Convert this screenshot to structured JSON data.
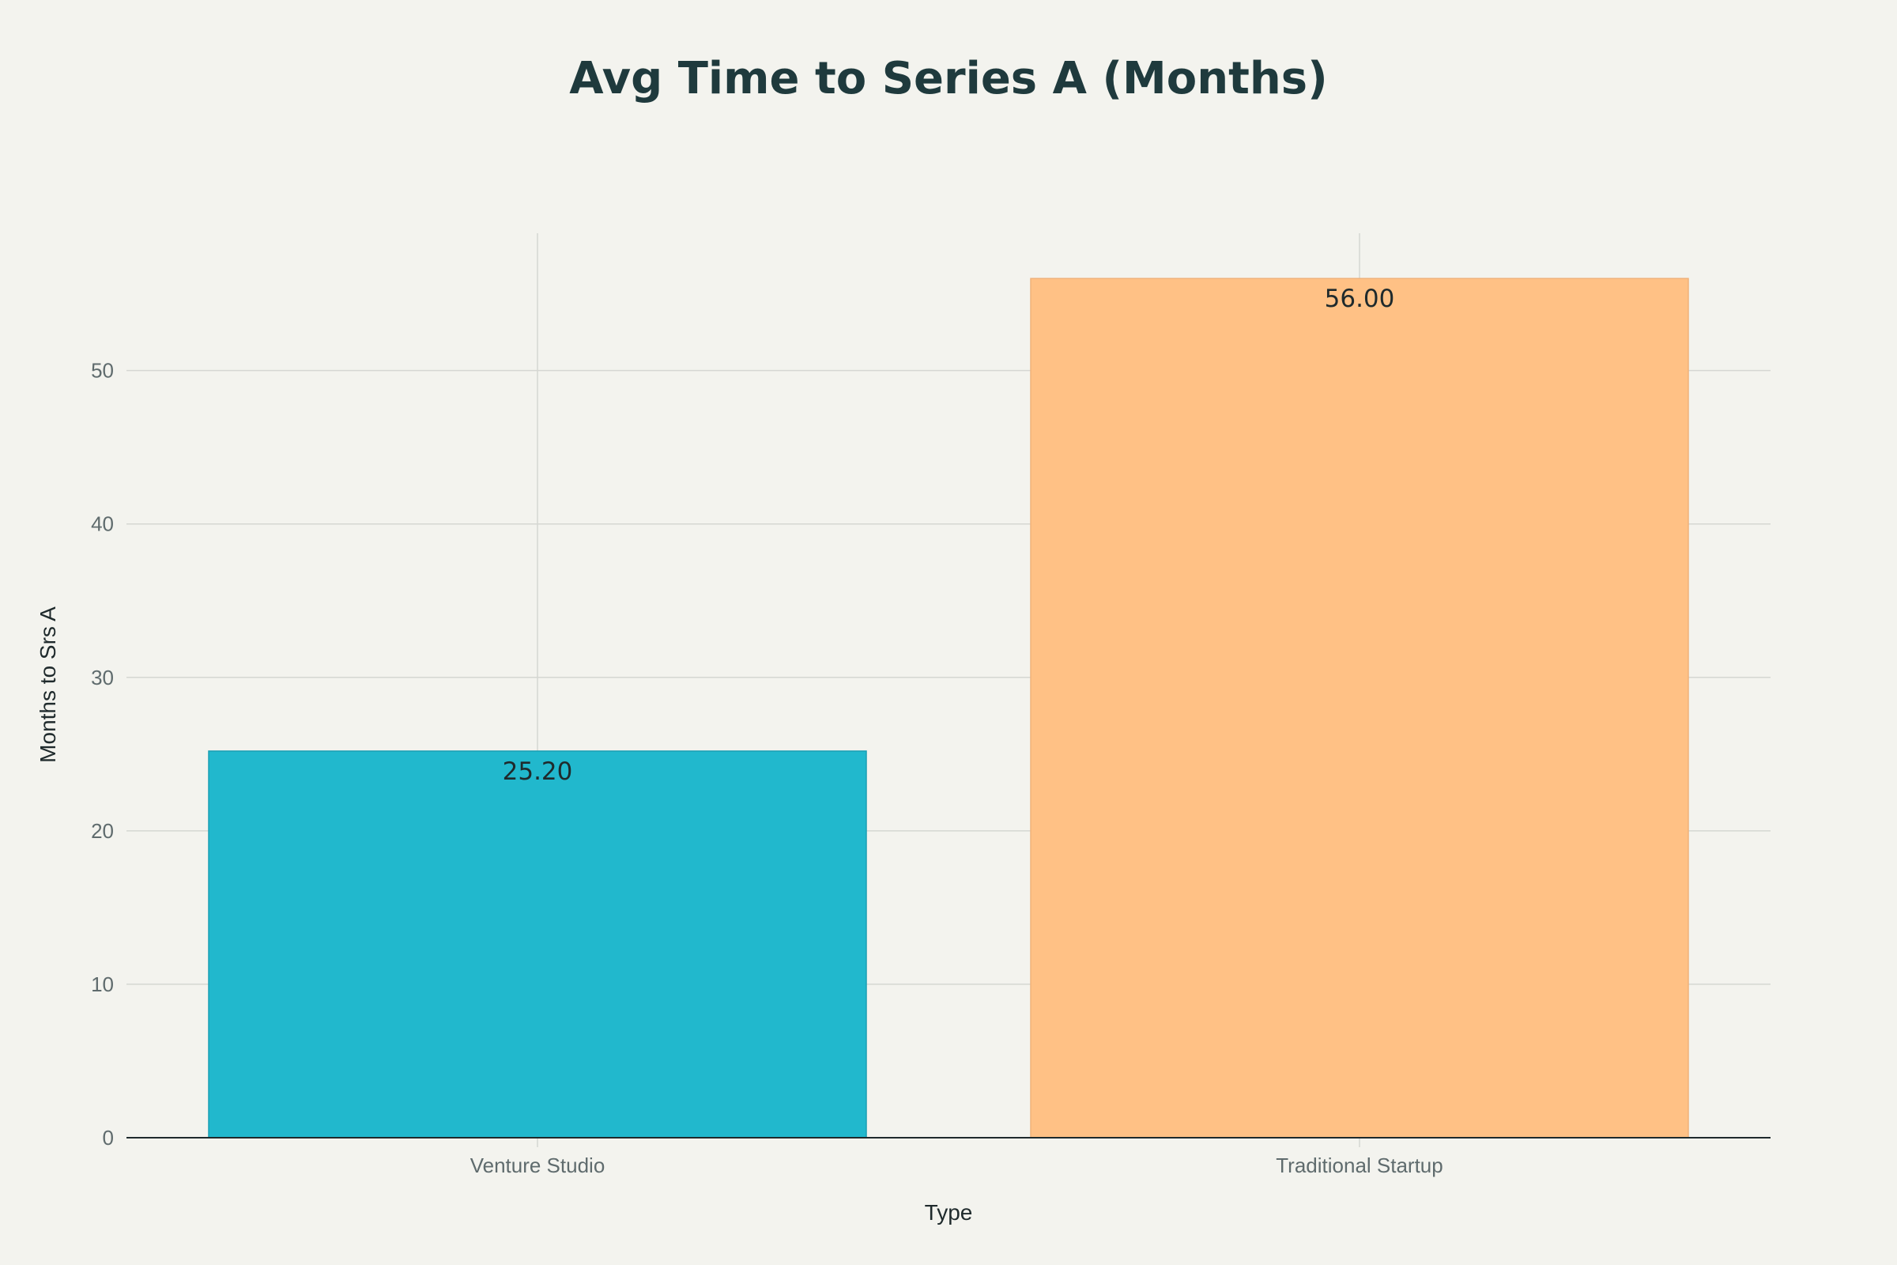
{
  "chart_data": {
    "type": "bar",
    "title": "Avg Time to Series A (Months)",
    "xlabel": "Type",
    "ylabel": "Months to Srs A",
    "categories": [
      "Venture Studio",
      "Traditional Startup"
    ],
    "values": [
      25.2,
      56.0
    ],
    "data_labels": [
      "25.20",
      "56.00"
    ],
    "yticks": [
      0,
      10,
      20,
      30,
      40,
      50
    ],
    "ylim": [
      0,
      58.95
    ],
    "grid": true,
    "legend": "none",
    "colors": {
      "bars": [
        "#21b8cd",
        "#ffc185"
      ],
      "bar_outline": [
        "#1a9fb3",
        "#f0b27a"
      ],
      "background": "#f3f3ee",
      "grid": "#d5d7d2",
      "axis_line": "#1f2a2c"
    }
  }
}
